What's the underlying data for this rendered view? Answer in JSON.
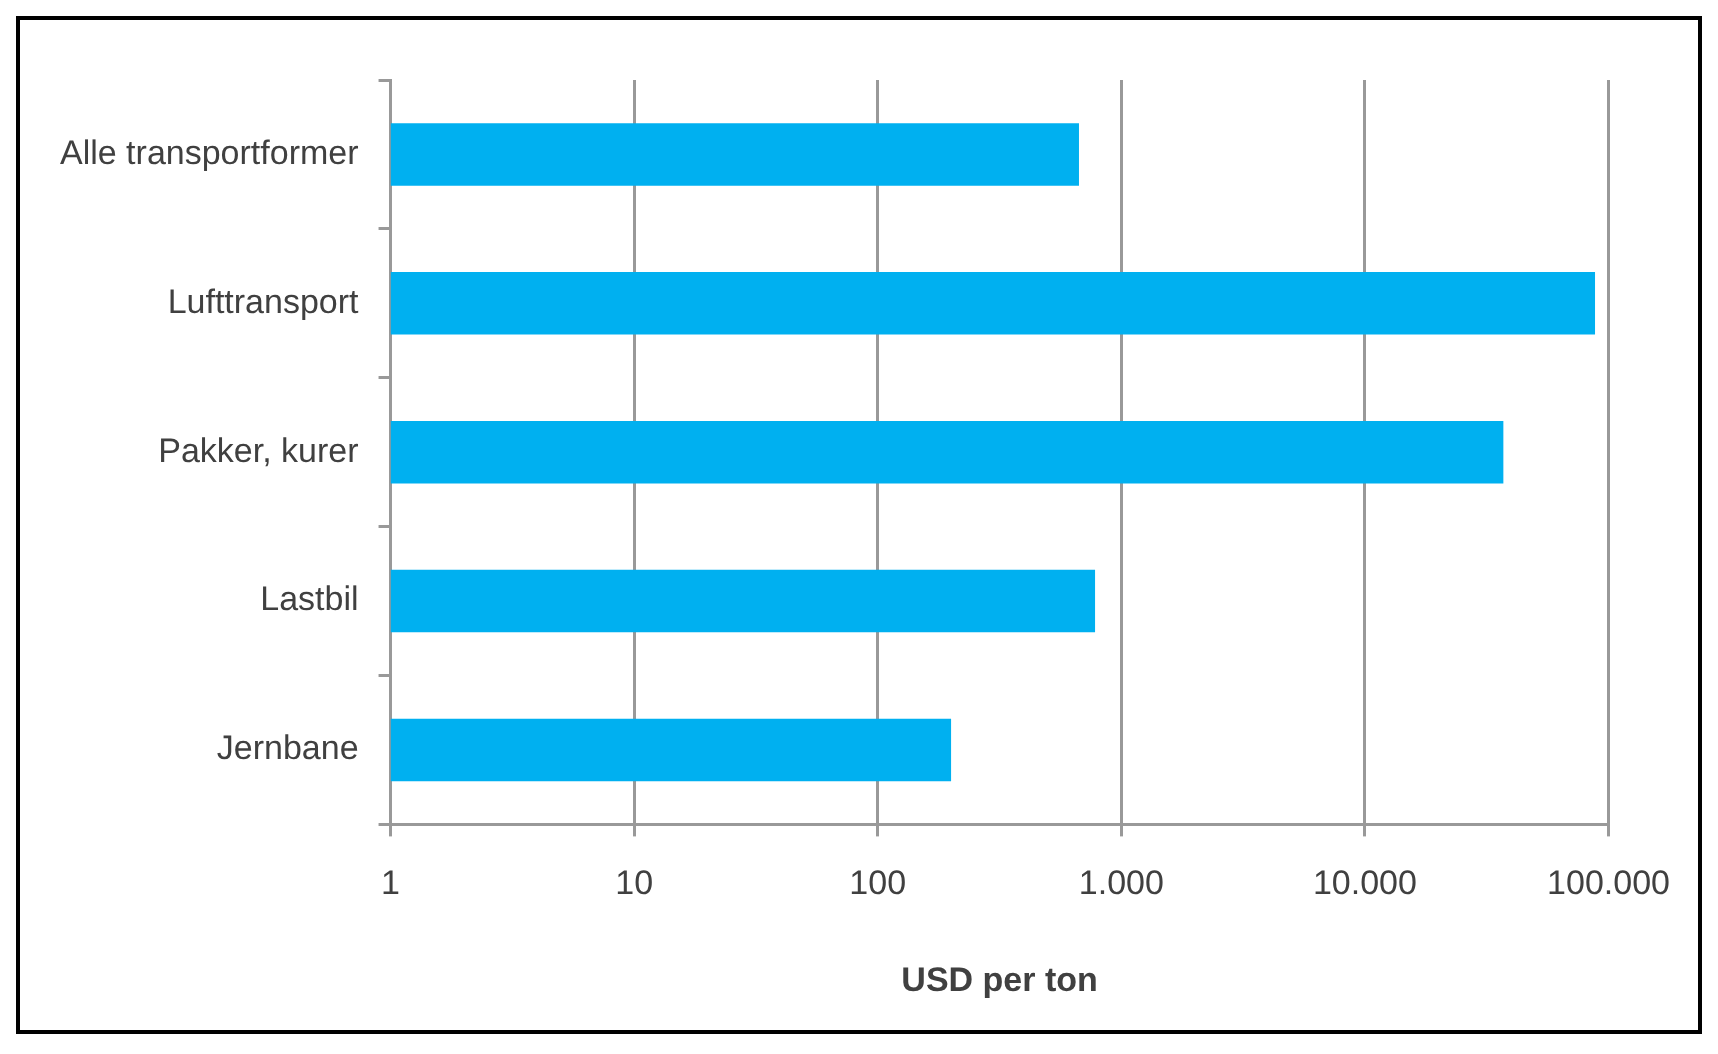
{
  "chart_data": {
    "type": "bar",
    "orientation": "horizontal",
    "categories": [
      "Alle transportformer",
      "Lufttransport",
      "Pakker, kurer",
      "Lastbil",
      "Jernbane"
    ],
    "values": [
      670,
      88000,
      37000,
      780,
      200
    ],
    "color": "#00b0f0",
    "xlabel": "USD per ton",
    "log": "x",
    "xlim": [
      1,
      100000
    ],
    "xticks": [
      1,
      10,
      100,
      {
        "value": 1000,
        "label": "1.000"
      },
      {
        "value": 10000,
        "label": "10.000"
      },
      {
        "value": 100000,
        "label": "100.000"
      }
    ],
    "grid": "x"
  }
}
